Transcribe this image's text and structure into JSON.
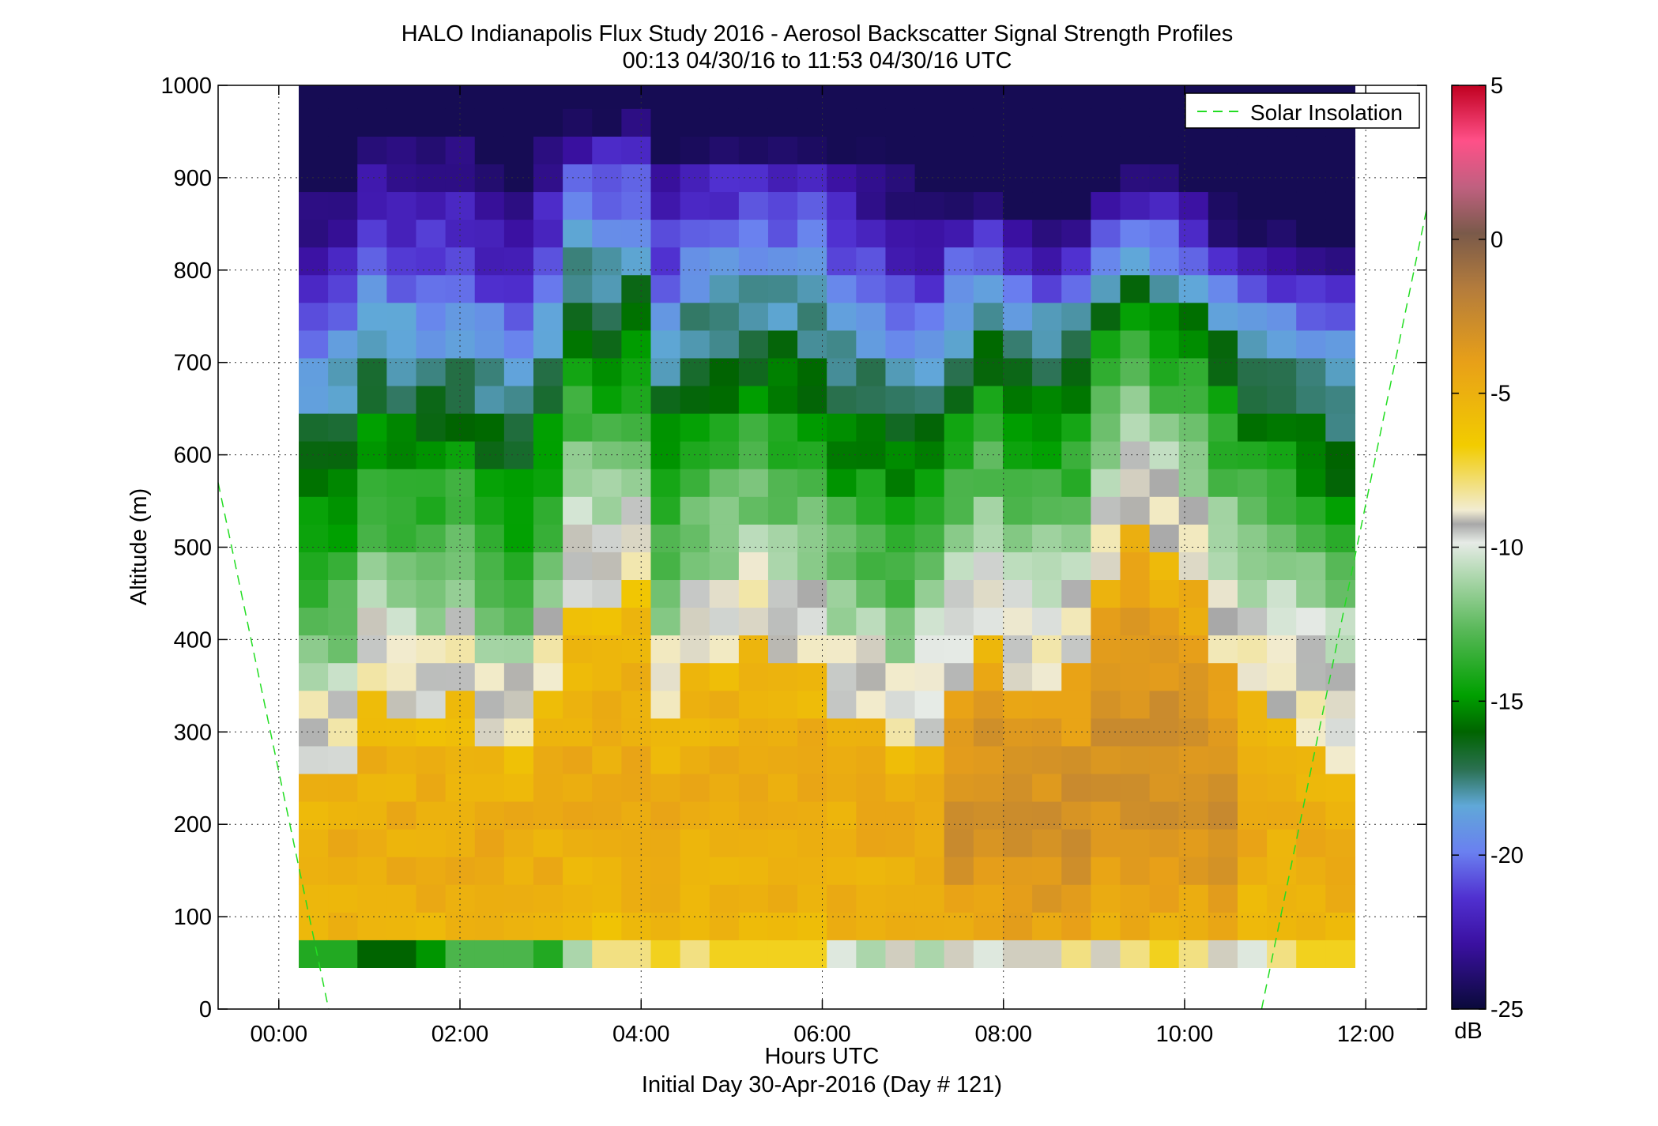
{
  "chart_data": {
    "type": "heatmap",
    "title": "HALO Indianapolis Flux Study 2016 - Aerosol Backscatter Signal Strength Profiles",
    "subtitle": "00:13 04/30/16 to 11:53 04/30/16  UTC",
    "xlabel": "Hours UTC",
    "xlabel2": "Initial Day 30-Apr-2016 (Day # 121)",
    "ylabel": "Altitude (m)",
    "xlim": [
      -0.67,
      12.67
    ],
    "ylim": [
      0,
      1000
    ],
    "x_ticks": [
      0,
      2,
      4,
      6,
      8,
      10,
      12
    ],
    "x_tick_labels": [
      "00:00",
      "02:00",
      "04:00",
      "06:00",
      "08:00",
      "10:00",
      "12:00"
    ],
    "y_ticks": [
      0,
      100,
      200,
      300,
      400,
      500,
      600,
      700,
      800,
      900,
      1000
    ],
    "y_tick_labels": [
      "0",
      "100",
      "200",
      "300",
      "400",
      "500",
      "600",
      "700",
      "800",
      "900",
      "1000"
    ],
    "grid": true,
    "colorbar": {
      "label": "dB",
      "range": [
        -25,
        5
      ],
      "ticks": [
        5,
        0,
        -5,
        -10,
        -15,
        -20,
        -25
      ],
      "tick_labels": [
        "5",
        "0",
        "-5",
        "-10",
        "-15",
        "-20",
        "-25"
      ]
    },
    "legend": {
      "entries": [
        "Solar Insolation"
      ],
      "position": "top-right"
    },
    "time_start_h": 0.22,
    "time_end_h": 11.88,
    "n_profiles": 36,
    "altitude_bottom_m": 45,
    "altitude_top_m": 1000,
    "gate_m": 30,
    "mixed_layer_top_m": [
      305,
      330,
      395,
      380,
      375,
      395,
      345,
      335,
      395,
      510,
      500,
      515,
      380,
      425,
      440,
      455,
      450,
      435,
      385,
      375,
      340,
      340,
      415,
      460,
      420,
      415,
      430,
      540,
      595,
      555,
      530,
      450,
      400,
      385,
      355,
      325
    ],
    "solar_insolation": [
      {
        "x": -0.67,
        "y": 570
      },
      {
        "x": 0.55,
        "y": 0
      },
      {
        "x": 10.85,
        "y": 0
      },
      {
        "x": 12.67,
        "y": 865
      }
    ]
  }
}
